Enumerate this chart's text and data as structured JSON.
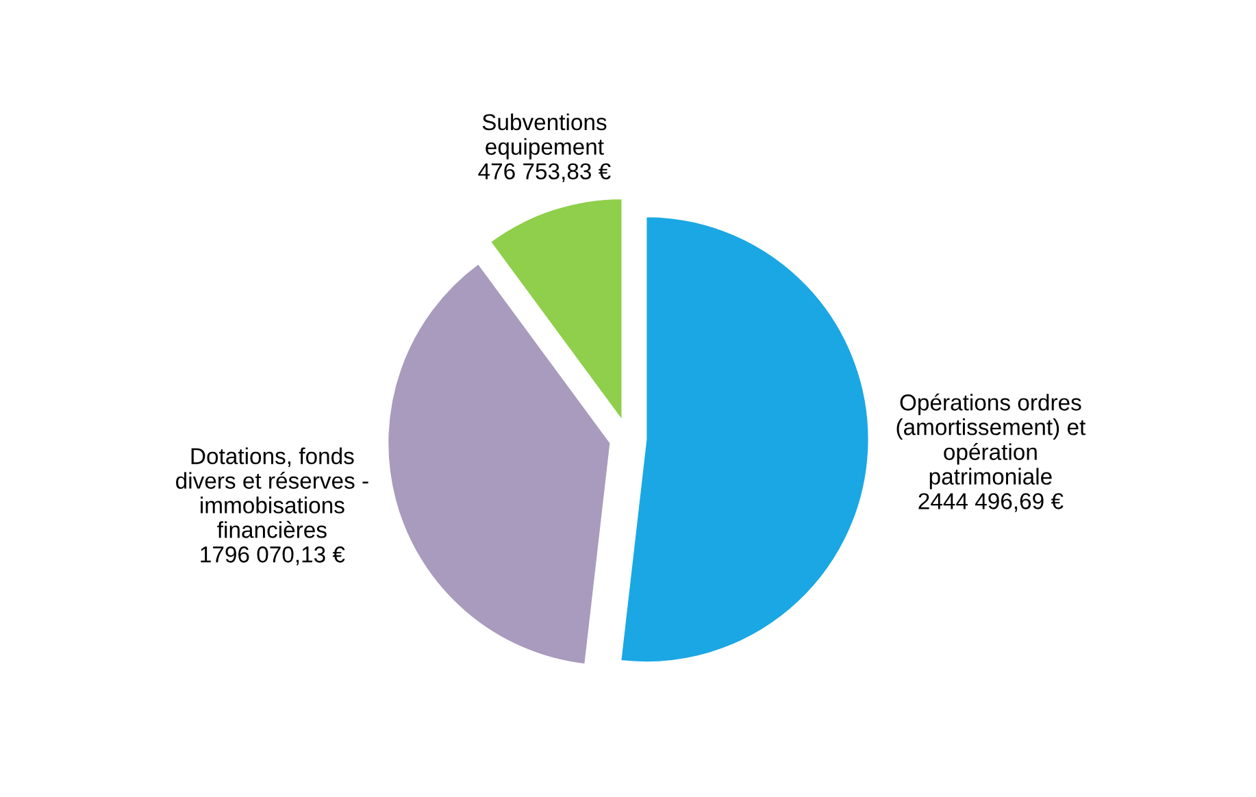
{
  "chart_data": {
    "type": "pie",
    "categories": [
      "Opérations ordres\n(amortissement) et\nopération\npatrimoniale",
      "Dotations, fonds\ndivers et réserves -\nimmobisations\nfinancières",
      "Subventions\nequipement"
    ],
    "values": [
      2444496.69,
      1796070.13,
      476753.83
    ],
    "value_labels": [
      "2444 496,69 €",
      "1796 070,13 €",
      "476 753,83 €"
    ],
    "colors": [
      "#1aa7e4",
      "#a89bbd",
      "#8fcf4b"
    ],
    "legend": false
  }
}
